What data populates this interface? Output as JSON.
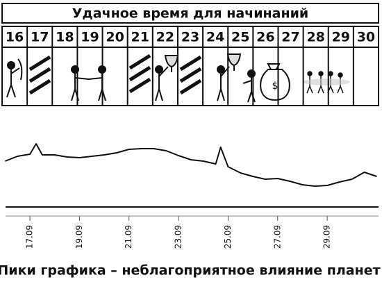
{
  "header": {
    "title": "Удачное время для начинаний",
    "days": [
      "16",
      "17",
      "18",
      "19",
      "20",
      "21",
      "22",
      "23",
      "24",
      "25",
      "26",
      "27",
      "28",
      "29",
      "30"
    ]
  },
  "chart_data": {
    "type": "line",
    "x": [
      16,
      16.5,
      17,
      17.25,
      17.5,
      18,
      18.5,
      19,
      19.5,
      20,
      20.5,
      21,
      21.5,
      22,
      22.5,
      23,
      23.5,
      24,
      24.5,
      24.7,
      25,
      25.5,
      26,
      26.5,
      27,
      27.5,
      28,
      28.5,
      29,
      29.5,
      30,
      30.5,
      31
    ],
    "series": [
      {
        "color": "#111111",
        "values": [
          66,
          73,
          76,
          91,
          75,
          75,
          72,
          71,
          73,
          75,
          78,
          83,
          84,
          84,
          81,
          74,
          68,
          66,
          62,
          86,
          58,
          49,
          44,
          40,
          41,
          37,
          32,
          30,
          31,
          36,
          40,
          50,
          44
        ]
      }
    ],
    "xlim": [
      16,
      31.1
    ],
    "ylim": [
      0,
      100
    ],
    "xticks": [
      {
        "value": 17,
        "label": "17.09"
      },
      {
        "value": 19,
        "label": "19.09"
      },
      {
        "value": 21,
        "label": "21.09"
      },
      {
        "value": 23,
        "label": "23.09"
      },
      {
        "value": 25,
        "label": "25.09"
      },
      {
        "value": 27,
        "label": "27.09"
      },
      {
        "value": 29,
        "label": "29.09"
      }
    ]
  },
  "caption": "Пики графика – неблагоприятное влияние планет"
}
